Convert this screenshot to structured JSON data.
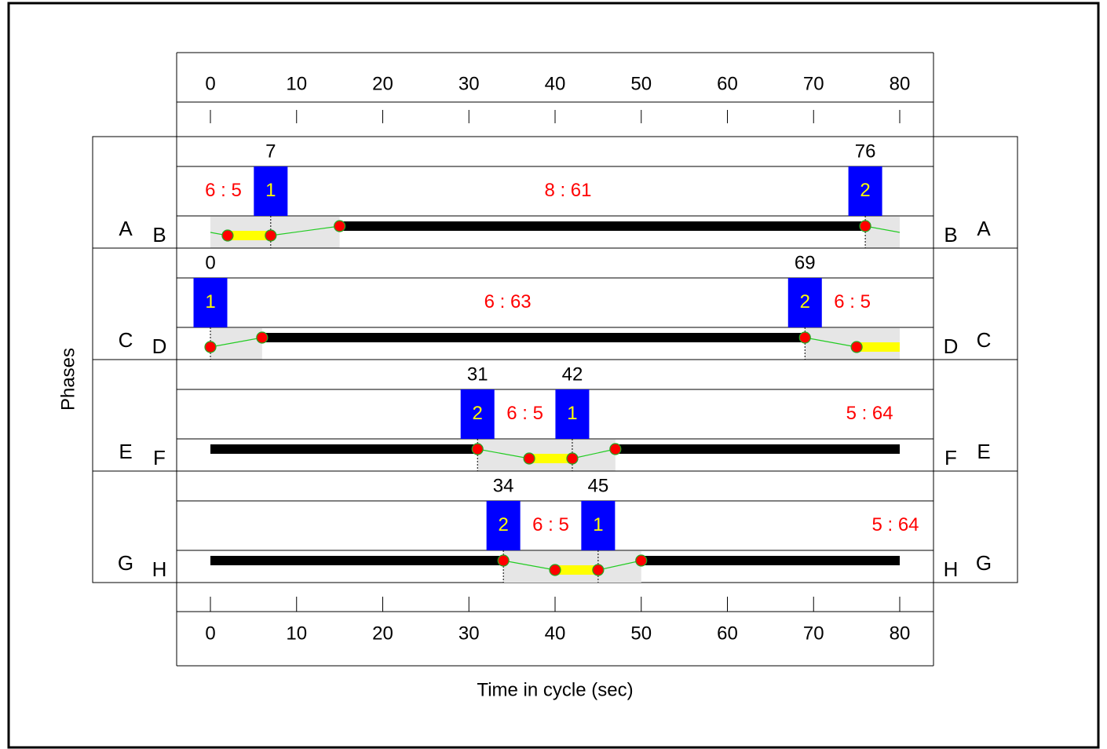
{
  "chart_data": {
    "type": "timing",
    "xlabel": "Time in cycle (sec)",
    "ylabel": "Phases",
    "xlim": [
      0,
      80
    ],
    "xticks": [
      0,
      10,
      20,
      30,
      40,
      50,
      60,
      70,
      80
    ],
    "panels": [
      {
        "left": [
          "A",
          "B"
        ],
        "right": [
          "B",
          "A"
        ],
        "stages": [
          {
            "time": 7,
            "stage": "1",
            "label": "8 : 61"
          },
          {
            "time": 76,
            "stage": "2",
            "label": "6 : 5"
          }
        ],
        "gray": [
          [
            0,
            15
          ],
          [
            76,
            80
          ]
        ],
        "green": [
          [
            15,
            76
          ]
        ],
        "amber": [
          [
            2,
            7
          ]
        ],
        "dots": [
          {
            "t": 2,
            "level": "low"
          },
          {
            "t": 7,
            "level": "low"
          },
          {
            "t": 15,
            "level": "high"
          },
          {
            "t": 76,
            "level": "high"
          }
        ]
      },
      {
        "left": [
          "C",
          "D"
        ],
        "right": [
          "D",
          "C"
        ],
        "stages": [
          {
            "time": 0,
            "stage": "1",
            "label": "6 : 63"
          },
          {
            "time": 69,
            "stage": "2",
            "label": "6 : 5"
          }
        ],
        "gray": [
          [
            0,
            6
          ],
          [
            69,
            80
          ]
        ],
        "green": [
          [
            6,
            69
          ]
        ],
        "amber": [
          [
            75,
            80
          ]
        ],
        "dots": [
          {
            "t": 0,
            "level": "low"
          },
          {
            "t": 6,
            "level": "high"
          },
          {
            "t": 69,
            "level": "high"
          },
          {
            "t": 75,
            "level": "low"
          }
        ]
      },
      {
        "left": [
          "E",
          "F"
        ],
        "right": [
          "F",
          "E"
        ],
        "stages": [
          {
            "time": 31,
            "stage": "2",
            "label": "6 : 5"
          },
          {
            "time": 42,
            "stage": "1",
            "label": "5 : 64"
          }
        ],
        "gray": [
          [
            31,
            47
          ]
        ],
        "green": [
          [
            0,
            31
          ],
          [
            47,
            80
          ]
        ],
        "amber": [
          [
            37,
            42
          ]
        ],
        "dots": [
          {
            "t": 31,
            "level": "high"
          },
          {
            "t": 37,
            "level": "low"
          },
          {
            "t": 42,
            "level": "low"
          },
          {
            "t": 47,
            "level": "high"
          }
        ]
      },
      {
        "left": [
          "G",
          "H"
        ],
        "right": [
          "H",
          "G"
        ],
        "stages": [
          {
            "time": 34,
            "stage": "2",
            "label": "6 : 5"
          },
          {
            "time": 45,
            "stage": "1",
            "label": "5 : 64"
          }
        ],
        "gray": [
          [
            34,
            50
          ]
        ],
        "green": [
          [
            0,
            34
          ],
          [
            50,
            80
          ]
        ],
        "amber": [
          [
            40,
            45
          ]
        ],
        "dots": [
          {
            "t": 34,
            "level": "high"
          },
          {
            "t": 40,
            "level": "low"
          },
          {
            "t": 45,
            "level": "low"
          },
          {
            "t": 50,
            "level": "high"
          }
        ]
      }
    ]
  }
}
